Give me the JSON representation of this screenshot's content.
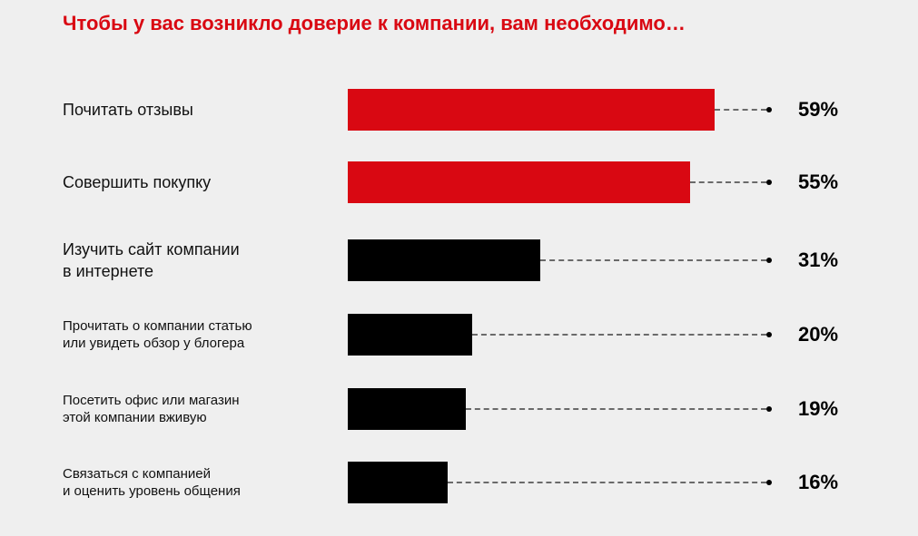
{
  "title": "Чтобы у вас возникло доверие к компании, вам необходимо…",
  "colors": {
    "highlight": "#d90812",
    "default": "#000000",
    "background": "#efefef"
  },
  "rows": [
    {
      "label": "Почитать отзывы",
      "value_label": "59%"
    },
    {
      "label": "Совершить покупку",
      "value_label": "55%"
    },
    {
      "label": "Изучить сайт компании\nв интернете",
      "value_label": "31%"
    },
    {
      "label": "Прочитать о компании статью\nили увидеть обзор у блогера",
      "value_label": "20%"
    },
    {
      "label": "Посетить офис или магазин\nэтой компании вживую",
      "value_label": "19%"
    },
    {
      "label": "Связаться с компанией\nи оценить уровень общения",
      "value_label": "16%"
    }
  ],
  "chart_data": {
    "type": "bar",
    "orientation": "horizontal",
    "title": "Чтобы у вас возникло доверие к компании, вам необходимо…",
    "categories": [
      "Почитать отзывы",
      "Совершить покупку",
      "Изучить сайт компании в интернете",
      "Прочитать о компании статью или увидеть обзор у блогера",
      "Посетить офис или магазин этой компании вживую",
      "Связаться с компанией и оценить уровень общения"
    ],
    "values": [
      59,
      55,
      31,
      20,
      19,
      16
    ],
    "unit": "%",
    "bar_colors": [
      "#d90812",
      "#d90812",
      "#000000",
      "#000000",
      "#000000",
      "#000000"
    ],
    "xlabel": "",
    "ylabel": "",
    "grid": false,
    "legend": null
  }
}
